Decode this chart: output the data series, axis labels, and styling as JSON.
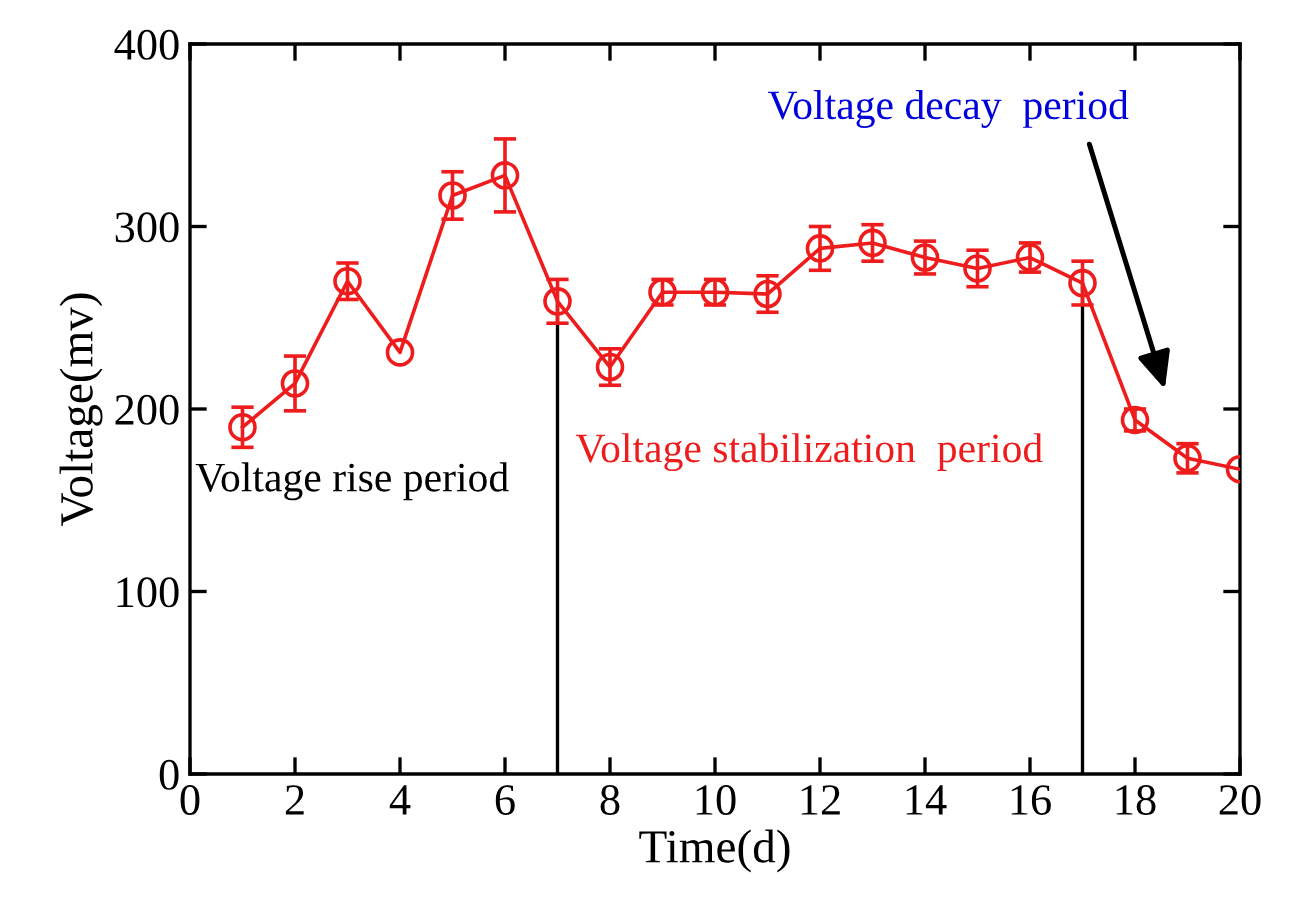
{
  "chart_data": {
    "type": "line",
    "xlabel": "Time(d)",
    "ylabel": "Voltage(mv)",
    "x": [
      1,
      2,
      3,
      4,
      5,
      6,
      7,
      8,
      9,
      10,
      11,
      12,
      13,
      14,
      15,
      16,
      17,
      18,
      19,
      20
    ],
    "series": [
      {
        "color": "#ee1c1c",
        "values": [
          190,
          214,
          270,
          231,
          317,
          328,
          259,
          223,
          264,
          264,
          263,
          288,
          291,
          283,
          277,
          283,
          269,
          194,
          173,
          167
        ],
        "errors": [
          11,
          15,
          10,
          null,
          13,
          20,
          12,
          10,
          7,
          7,
          10,
          12,
          10,
          9,
          10,
          8,
          12,
          6,
          8,
          null
        ]
      }
    ],
    "xlim": [
      0,
      20
    ],
    "ylim": [
      0,
      400
    ],
    "xticks": [
      0,
      2,
      4,
      6,
      8,
      10,
      12,
      14,
      16,
      18,
      20
    ],
    "yticks": [
      0,
      100,
      200,
      300,
      400
    ],
    "marker": "circle",
    "line_style": "solid",
    "grid": false,
    "ref_lines": [
      {
        "axis": "x",
        "value": 7,
        "color": "#000000"
      },
      {
        "axis": "x",
        "value": 17,
        "color": "#000000"
      }
    ],
    "annotations": [
      "Voltage rise period",
      "Voltage stabilization  period",
      "Voltage decay  period"
    ]
  }
}
